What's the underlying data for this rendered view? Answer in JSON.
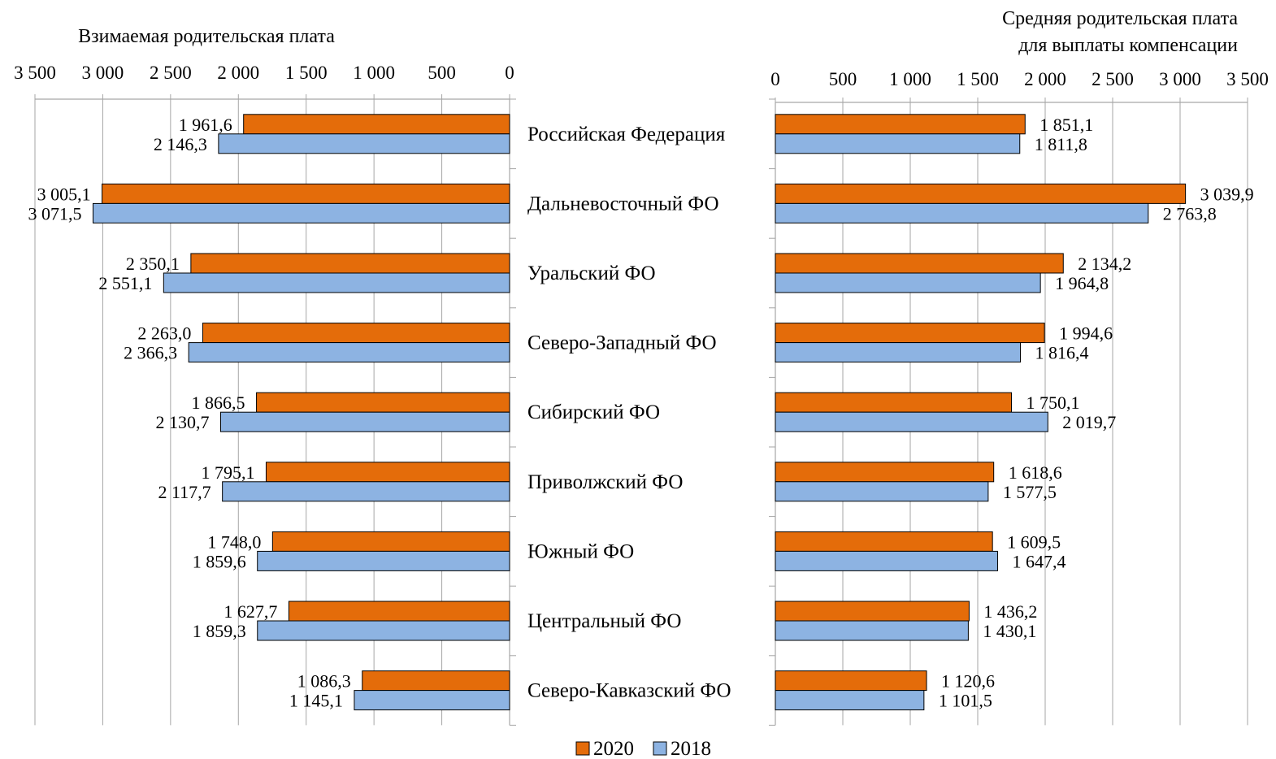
{
  "colors": {
    "series_2020": "#E46C0A",
    "series_2018": "#8DB3E2",
    "bar_stroke": "#000000",
    "axis": "#A6A6A6"
  },
  "chart_data": [
    {
      "type": "bar",
      "orientation": "horizontal",
      "x_direction": "reversed",
      "title": "Взимаемая родительская плата",
      "xlim": [
        0,
        3500
      ],
      "x_ticks": [
        "0",
        "500",
        "1 000",
        "1 500",
        "2 000",
        "2 500",
        "3 000",
        "3 500"
      ],
      "categories": [
        "Российская Федерация",
        "Дальневосточный ФО",
        "Уральский ФО",
        "Северо-Западный ФО",
        "Сибирский ФО",
        "Приволжский ФО",
        "Южный ФО",
        "Центральный ФО",
        "Северо-Кавказский ФО"
      ],
      "series": [
        {
          "name": "2020",
          "values": [
            1961.6,
            3005.1,
            2350.1,
            2263.0,
            1866.5,
            1795.1,
            1748.0,
            1627.7,
            1086.3
          ],
          "labels": [
            "1 961,6",
            "3 005,1",
            "2 350,1",
            "2 263,0",
            "1 866,5",
            "1 795,1",
            "1 748,0",
            "1 627,7",
            "1 086,3"
          ]
        },
        {
          "name": "2018",
          "values": [
            2146.3,
            3071.5,
            2551.1,
            2366.3,
            2130.7,
            2117.7,
            1859.6,
            1859.3,
            1145.1
          ],
          "labels": [
            "2 146,3",
            "3 071,5",
            "2 551,1",
            "2 366,3",
            "2 130,7",
            "2 117,7",
            "1 859,6",
            "1 859,3",
            "1 145,1"
          ]
        }
      ],
      "grid": false,
      "legend": "bottom"
    },
    {
      "type": "bar",
      "orientation": "horizontal",
      "title": [
        "Средняя родительская плата",
        "для выплаты компенсации"
      ],
      "xlim": [
        0,
        3500
      ],
      "x_ticks": [
        "0",
        "500",
        "1 000",
        "1 500",
        "2 000",
        "2 500",
        "3 000",
        "3 500"
      ],
      "categories": [
        "Российская Федерация",
        "Дальневосточный ФО",
        "Уральский ФО",
        "Северо-Западный ФО",
        "Сибирский ФО",
        "Приволжский ФО",
        "Южный ФО",
        "Центральный ФО",
        "Северо-Кавказский ФО"
      ],
      "series": [
        {
          "name": "2020",
          "values": [
            1851.1,
            3039.9,
            2134.2,
            1994.6,
            1750.1,
            1618.6,
            1609.5,
            1436.2,
            1120.6
          ],
          "labels": [
            "1 851,1",
            "3 039,9",
            "2 134,2",
            "1 994,6",
            "1 750,1",
            "1 618,6",
            "1 609,5",
            "1 436,2",
            "1 120,6"
          ]
        },
        {
          "name": "2018",
          "values": [
            1811.8,
            2763.8,
            1964.8,
            1816.4,
            2019.7,
            1577.5,
            1647.4,
            1430.1,
            1101.5
          ],
          "labels": [
            "1 811,8",
            "2 763,8",
            "1 964,8",
            "1 816,4",
            "2 019,7",
            "1 577,5",
            "1 647,4",
            "1 430,1",
            "1 101,5"
          ]
        }
      ],
      "grid": false,
      "legend": "bottom"
    }
  ],
  "legend": {
    "items": [
      {
        "label": "2020"
      },
      {
        "label": "2018"
      }
    ]
  }
}
